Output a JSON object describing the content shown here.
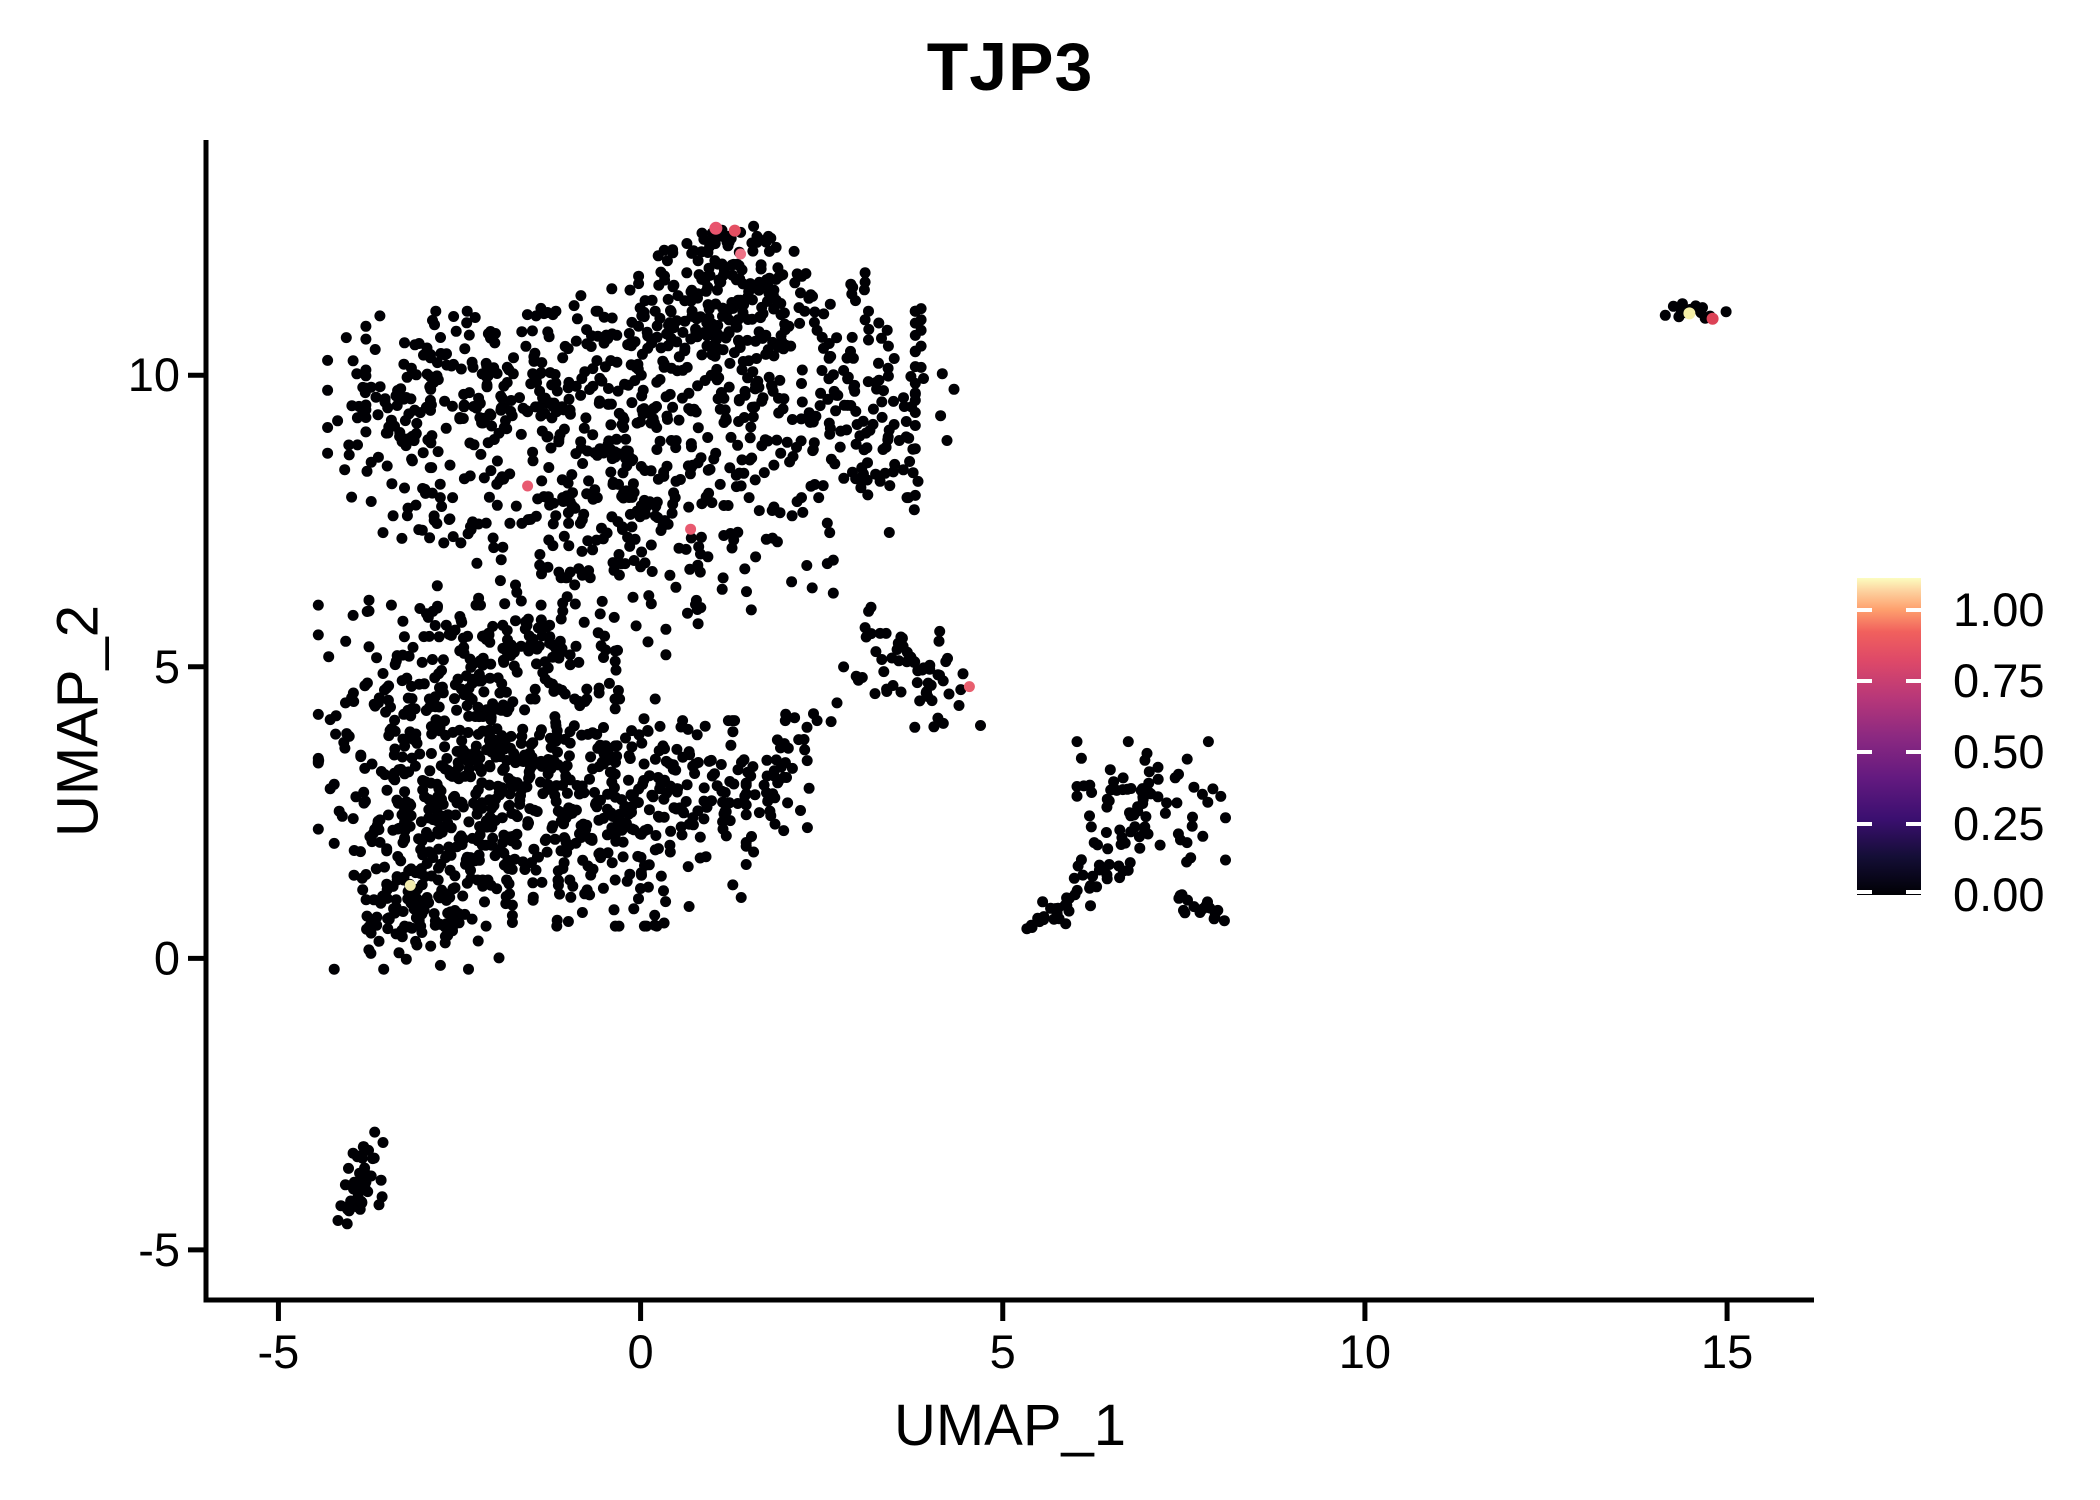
{
  "chart_data": {
    "type": "scatter",
    "title": "TJP3",
    "xlabel": "UMAP_1",
    "ylabel": "UMAP_2",
    "xlim": [
      -6.0,
      16.2
    ],
    "ylim": [
      -5.86,
      14.0
    ],
    "grid": false,
    "background": "#ffffff",
    "axis_color": "#000000",
    "point_color": "#000004",
    "point_radius_px": 5.5,
    "x_ticks": [
      {
        "value": -5,
        "label": "-5"
      },
      {
        "value": 0,
        "label": "0"
      },
      {
        "value": 5,
        "label": "5"
      },
      {
        "value": 10,
        "label": "10"
      },
      {
        "value": 15,
        "label": "15"
      }
    ],
    "y_ticks": [
      {
        "value": -5,
        "label": "-5"
      },
      {
        "value": 0,
        "label": "0"
      },
      {
        "value": 5,
        "label": "5"
      },
      {
        "value": 10,
        "label": "10"
      }
    ],
    "colorbar": {
      "position": "right",
      "range": [
        0,
        1.112
      ],
      "ticks": [
        {
          "value": 1.0,
          "label": "1.00"
        },
        {
          "value": 0.75,
          "label": "0.75"
        },
        {
          "value": 0.5,
          "label": "0.50"
        },
        {
          "value": 0.25,
          "label": "0.25"
        },
        {
          "value": 0.0,
          "label": "0.00"
        }
      ],
      "tick_mark_color": "#ffffff",
      "gradient_name": "magma",
      "stops": [
        {
          "pos": 0.0,
          "color": "#000004"
        },
        {
          "pos": 0.12,
          "color": "#140e36"
        },
        {
          "pos": 0.24,
          "color": "#3b0f70"
        },
        {
          "pos": 0.37,
          "color": "#641a80"
        },
        {
          "pos": 0.5,
          "color": "#8c2981"
        },
        {
          "pos": 0.62,
          "color": "#b73779"
        },
        {
          "pos": 0.74,
          "color": "#de4968"
        },
        {
          "pos": 0.83,
          "color": "#f1605d"
        },
        {
          "pos": 0.9,
          "color": "#fe9f6d"
        },
        {
          "pos": 0.96,
          "color": "#fdd3a0"
        },
        {
          "pos": 1.0,
          "color": "#fcfdbf"
        }
      ]
    },
    "clusters": [
      {
        "name": "upper-main-band",
        "type": "gaussian",
        "cx": 0.0,
        "cy": 9.5,
        "sx": 1.85,
        "sy": 0.78,
        "n": 430,
        "seed": 11
      },
      {
        "name": "upper-ridge-1",
        "type": "gaussian",
        "cx": 1.1,
        "cy": 11.9,
        "sx": 0.55,
        "sy": 0.3,
        "n": 55,
        "seed": 12
      },
      {
        "name": "upper-ridge-2",
        "type": "gaussian",
        "cx": 1.05,
        "cy": 11.35,
        "sx": 1.0,
        "sy": 0.3,
        "n": 85,
        "seed": 13
      },
      {
        "name": "upper-ridge-3",
        "type": "gaussian",
        "cx": 0.9,
        "cy": 10.75,
        "sx": 1.45,
        "sy": 0.3,
        "n": 110,
        "seed": 14
      },
      {
        "name": "upper-peak-tip",
        "type": "gaussian",
        "cx": 1.15,
        "cy": 12.35,
        "sx": 0.3,
        "sy": 0.17,
        "n": 20,
        "seed": 15
      },
      {
        "name": "upper-left-lobe",
        "type": "gaussian",
        "cx": -3.05,
        "cy": 9.55,
        "sx": 0.62,
        "sy": 0.8,
        "n": 110,
        "seed": 16
      },
      {
        "name": "upper-lower-band",
        "type": "gaussian",
        "cx": -0.6,
        "cy": 7.6,
        "sx": 1.55,
        "sy": 0.62,
        "n": 170,
        "seed": 17
      },
      {
        "name": "upper-right-lobe",
        "type": "gaussian",
        "cx": 3.2,
        "cy": 8.9,
        "sx": 0.55,
        "sy": 0.78,
        "n": 70,
        "seed": 18
      },
      {
        "name": "upper-bottom-strays",
        "type": "gaussian",
        "cx": 0.2,
        "cy": 6.6,
        "sx": 1.2,
        "sy": 0.42,
        "n": 45,
        "seed": 19
      },
      {
        "name": "lowerleft-core-1",
        "type": "gaussian",
        "cx": -2.4,
        "cy": 3.7,
        "sx": 1.0,
        "sy": 1.15,
        "n": 380,
        "seed": 21
      },
      {
        "name": "lowerleft-core-2",
        "type": "gaussian",
        "cx": -0.9,
        "cy": 2.5,
        "sx": 1.15,
        "sy": 0.95,
        "n": 330,
        "seed": 22
      },
      {
        "name": "lowerleft-bottom",
        "type": "gaussian",
        "cx": -3.0,
        "cy": 1.35,
        "sx": 0.6,
        "sy": 0.75,
        "n": 140,
        "seed": 23
      },
      {
        "name": "lowerleft-right-tail",
        "type": "gaussian",
        "cx": 0.9,
        "cy": 2.95,
        "sx": 0.75,
        "sy": 0.55,
        "n": 90,
        "seed": 24
      },
      {
        "name": "lowerleft-top-neck",
        "type": "gaussian",
        "cx": -1.7,
        "cy": 5.4,
        "sx": 1.0,
        "sy": 0.55,
        "n": 110,
        "seed": 25
      },
      {
        "name": "lowerleft-arm",
        "type": "line",
        "x1": 1.5,
        "y1": 2.6,
        "x2": 2.5,
        "y2": 4.35,
        "jitter": 0.16,
        "n": 26,
        "seed": 26
      },
      {
        "name": "lowerleft-tip",
        "type": "gaussian",
        "cx": -3.15,
        "cy": 0.7,
        "sx": 0.38,
        "sy": 0.3,
        "n": 40,
        "seed": 27
      },
      {
        "name": "mid-small-left",
        "type": "gaussian",
        "cx": 3.45,
        "cy": 5.2,
        "sx": 0.36,
        "sy": 0.4,
        "n": 32,
        "seed": 31
      },
      {
        "name": "mid-small-right",
        "type": "gaussian",
        "cx": 4.1,
        "cy": 4.7,
        "sx": 0.3,
        "sy": 0.36,
        "n": 30,
        "seed": 32
      },
      {
        "name": "right-blob",
        "type": "gaussian",
        "cx": 7.05,
        "cy": 2.65,
        "sx": 0.5,
        "sy": 0.52,
        "n": 78,
        "seed": 41
      },
      {
        "name": "right-arm",
        "type": "line",
        "x1": 5.45,
        "y1": 0.5,
        "x2": 6.55,
        "y2": 1.65,
        "jitter": 0.13,
        "n": 34,
        "seed": 42
      },
      {
        "name": "right-lower-streak",
        "type": "line",
        "x1": 7.3,
        "y1": 1.05,
        "x2": 7.95,
        "y2": 0.72,
        "jitter": 0.09,
        "n": 18,
        "seed": 43
      },
      {
        "name": "right-connector",
        "type": "gaussian",
        "cx": 6.6,
        "cy": 1.8,
        "sx": 0.28,
        "sy": 0.25,
        "n": 12,
        "seed": 44
      },
      {
        "name": "bottomleft-streak",
        "type": "line",
        "x1": -3.72,
        "y1": -3.15,
        "x2": -3.95,
        "y2": -4.3,
        "jitter": 0.11,
        "n": 36,
        "seed": 51
      },
      {
        "name": "bottomleft-blob",
        "type": "gaussian",
        "cx": -3.85,
        "cy": -4.2,
        "sx": 0.16,
        "sy": 0.18,
        "n": 14,
        "seed": 52
      },
      {
        "name": "farright-island",
        "type": "gaussian",
        "cx": 14.5,
        "cy": 11.08,
        "sx": 0.26,
        "sy": 0.11,
        "n": 16,
        "seed": 61
      }
    ],
    "highlight_points": [
      {
        "x": 1.04,
        "y": 12.52,
        "value": 0.65,
        "color": "#e8546d",
        "r": 6.5
      },
      {
        "x": 1.3,
        "y": 12.48,
        "value": 0.65,
        "color": "#e44f62",
        "r": 6
      },
      {
        "x": 1.38,
        "y": 12.08,
        "value": 0.55,
        "color": "#ee7286",
        "r": 5.5
      },
      {
        "x": -1.56,
        "y": 8.1,
        "value": 0.6,
        "color": "#e85a70",
        "r": 5.5
      },
      {
        "x": 0.69,
        "y": 7.36,
        "value": 0.6,
        "color": "#e85a70",
        "r": 5.5
      },
      {
        "x": 4.54,
        "y": 4.66,
        "value": 0.6,
        "color": "#e85f6e",
        "r": 5.5
      },
      {
        "x": -3.18,
        "y": 1.25,
        "value": 0.97,
        "color": "#f2ecae",
        "r": 5.5
      },
      {
        "x": 14.48,
        "y": 11.06,
        "value": 1.0,
        "color": "#f5efa6",
        "r": 6
      },
      {
        "x": 14.8,
        "y": 10.97,
        "value": 0.72,
        "color": "#dc4256",
        "r": 6
      }
    ]
  }
}
